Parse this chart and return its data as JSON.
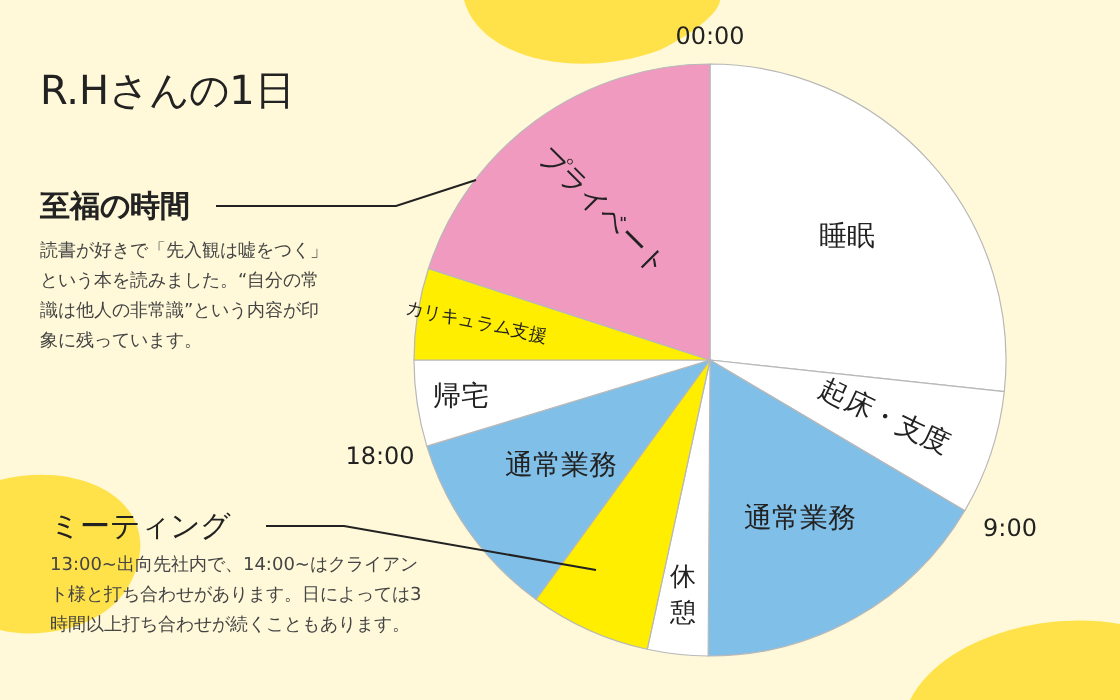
{
  "chart_data": {
    "type": "pie",
    "title": "R.Hさんの1日",
    "categories": [
      "睡眠",
      "起床・支度",
      "通常業務",
      "休憩",
      null,
      "通常業務",
      "帰宅",
      "カリキュラム支援",
      "プライベート"
    ],
    "values": [
      26.7,
      6.8,
      16.6,
      3.3,
      6.6,
      10.3,
      4.7,
      5.0,
      20.0
    ],
    "colors": [
      "#ffffff",
      "#ffffff",
      "#80bfe8",
      "#ffffff",
      "#ffee00",
      "#80bfe8",
      "#ffffff",
      "#ffee00",
      "#f09ac0"
    ],
    "annotations": [
      "00:00",
      "9:00",
      "18:00",
      "至福の時間",
      "読書が好きで「先入観は嘘をつく」という本を読みました。“自分の常識は他人の非常識”という内容が印象に残っています。",
      "ミーティング",
      "13:00~出向先社内で、14:00~はクライアント様と打ち合わせがあります。日によっては3時間以上打ち合わせが続くこともあります。"
    ]
  }
}
